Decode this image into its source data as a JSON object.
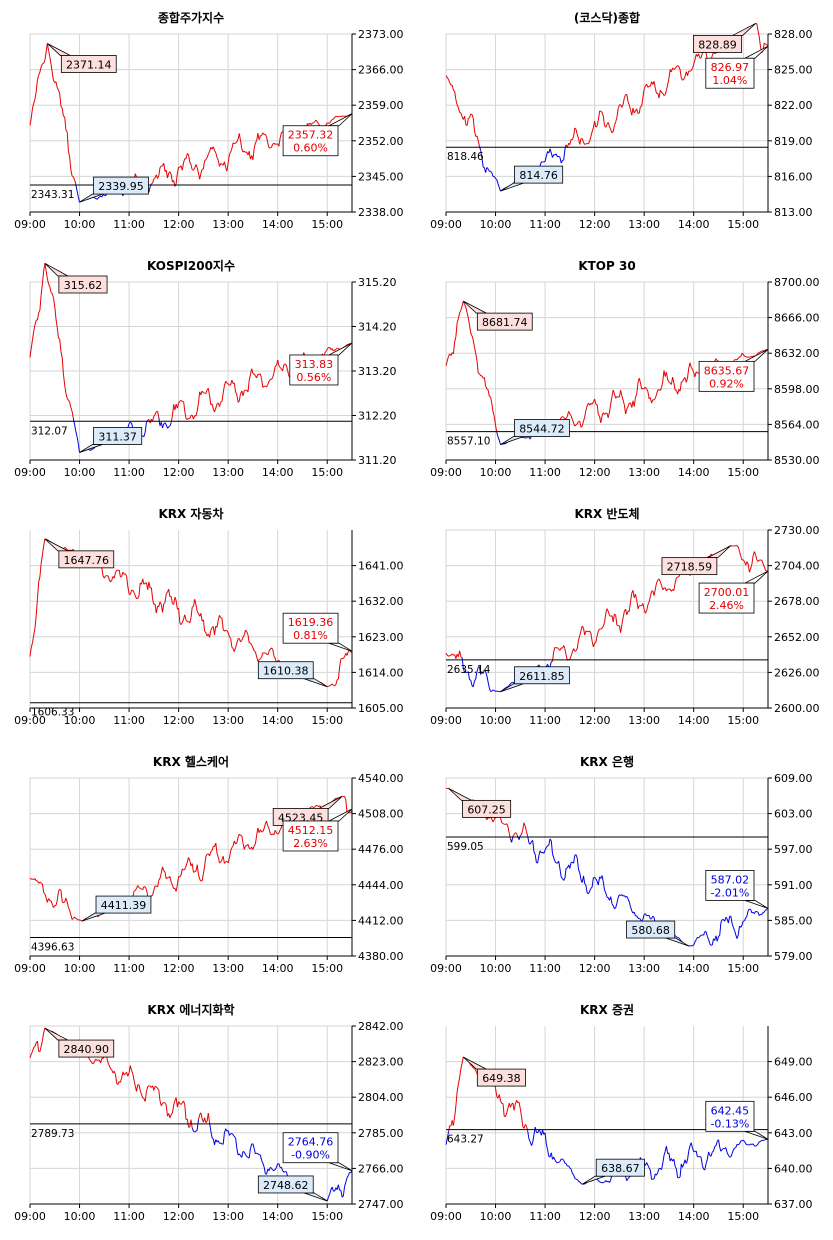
{
  "chart_data": [
    {
      "type": "line",
      "title": "종합주가지수",
      "x_ticks": [
        "09:00",
        "10:00",
        "11:00",
        "12:00",
        "13:00",
        "14:00",
        "15:00"
      ],
      "y_ticks": [
        "2373.00",
        "2366.00",
        "2359.00",
        "2352.00",
        "2345.00",
        "2338.00"
      ],
      "ylim": [
        2338,
        2373
      ],
      "base": 2343.31,
      "base_label": "2343.31",
      "start": 2355,
      "close": 2357.32,
      "high": {
        "t": 0.35,
        "v": 2371.14,
        "label": "2371.14"
      },
      "low": {
        "t": 1.0,
        "v": 2339.95,
        "label": "2339.95"
      },
      "current": {
        "value": "2357.32",
        "change": "0.60%"
      },
      "up_color": "#e60000",
      "down_color": "#0000e0"
    },
    {
      "type": "line",
      "title": "(코스닥)종합",
      "x_ticks": [
        "09:00",
        "10:00",
        "11:00",
        "12:00",
        "13:00",
        "14:00",
        "15:00"
      ],
      "y_ticks": [
        "828.00",
        "825.00",
        "822.00",
        "819.00",
        "816.00",
        "813.00"
      ],
      "ylim": [
        813,
        828
      ],
      "base": 818.46,
      "base_label": "818.46",
      "start": 824.5,
      "close": 826.97,
      "high": {
        "t": 6.25,
        "v": 828.89,
        "label": "828.89"
      },
      "low": {
        "t": 1.1,
        "v": 814.76,
        "label": "814.76"
      },
      "current": {
        "value": "826.97",
        "change": "1.04%"
      },
      "up_color": "#e60000",
      "down_color": "#0000e0"
    },
    {
      "type": "line",
      "title": "KOSPI200지수",
      "x_ticks": [
        "09:00",
        "10:00",
        "11:00",
        "12:00",
        "13:00",
        "14:00",
        "15:00"
      ],
      "y_ticks": [
        "315.20",
        "314.20",
        "313.20",
        "312.20",
        "311.20"
      ],
      "ylim": [
        311.2,
        315.2
      ],
      "base": 312.07,
      "base_label": "312.07",
      "start": 313.5,
      "close": 313.83,
      "high": {
        "t": 0.3,
        "v": 315.62,
        "label": "315.62"
      },
      "low": {
        "t": 1.0,
        "v": 311.37,
        "label": "311.37"
      },
      "current": {
        "value": "313.83",
        "change": "0.56%"
      },
      "up_color": "#e60000",
      "down_color": "#0000e0"
    },
    {
      "type": "line",
      "title": "KTOP 30",
      "x_ticks": [
        "09:00",
        "10:00",
        "11:00",
        "12:00",
        "13:00",
        "14:00",
        "15:00"
      ],
      "y_ticks": [
        "8700.00",
        "8666.00",
        "8632.00",
        "8598.00",
        "8564.00",
        "8530.00"
      ],
      "ylim": [
        8530,
        8700
      ],
      "base": 8557.1,
      "base_label": "8557.10",
      "start": 8620,
      "close": 8635.67,
      "high": {
        "t": 0.35,
        "v": 8681.74,
        "label": "8681.74"
      },
      "low": {
        "t": 1.1,
        "v": 8544.72,
        "label": "8544.72"
      },
      "current": {
        "value": "8635.67",
        "change": "0.92%"
      },
      "up_color": "#e60000",
      "down_color": "#0000e0"
    },
    {
      "type": "line",
      "title": "KRX 자동차",
      "x_ticks": [
        "09:00",
        "10:00",
        "11:00",
        "12:00",
        "13:00",
        "14:00",
        "15:00"
      ],
      "y_ticks": [
        "1641.00",
        "1632.00",
        "1623.00",
        "1614.00",
        "1605.00"
      ],
      "ylim": [
        1605,
        1650
      ],
      "base": 1606.33,
      "base_label": "1606.33",
      "start": 1618,
      "close": 1619.36,
      "high": {
        "t": 0.3,
        "v": 1647.76,
        "label": "1647.76"
      },
      "low": {
        "t": 6.0,
        "v": 1610.38,
        "label": "1610.38"
      },
      "current": {
        "value": "1619.36",
        "change": "0.81%"
      },
      "up_color": "#e60000",
      "down_color": "#0000e0"
    },
    {
      "type": "line",
      "title": "KRX 반도체",
      "x_ticks": [
        "09:00",
        "10:00",
        "11:00",
        "12:00",
        "13:00",
        "14:00",
        "15:00"
      ],
      "y_ticks": [
        "2730.00",
        "2704.00",
        "2678.00",
        "2652.00",
        "2626.00",
        "2600.00"
      ],
      "ylim": [
        2600,
        2730
      ],
      "base": 2635.14,
      "base_label": "2635.14",
      "start": 2640,
      "close": 2700.01,
      "high": {
        "t": 5.75,
        "v": 2718.59,
        "label": "2718.59"
      },
      "low": {
        "t": 1.1,
        "v": 2611.85,
        "label": "2611.85"
      },
      "current": {
        "value": "2700.01",
        "change": "2.46%"
      },
      "up_color": "#e60000",
      "down_color": "#0000e0"
    },
    {
      "type": "line",
      "title": "KRX 헬스케어",
      "x_ticks": [
        "09:00",
        "10:00",
        "11:00",
        "12:00",
        "13:00",
        "14:00",
        "15:00"
      ],
      "y_ticks": [
        "4540.00",
        "4508.00",
        "4476.00",
        "4444.00",
        "4412.00",
        "4380.00"
      ],
      "ylim": [
        4380,
        4540
      ],
      "base": 4396.63,
      "base_label": "4396.63",
      "start": 4450,
      "close": 4512.15,
      "high": {
        "t": 6.3,
        "v": 4523.45,
        "label": "4523.45"
      },
      "low": {
        "t": 1.05,
        "v": 4411.39,
        "label": "4411.39"
      },
      "current": {
        "value": "4512.15",
        "change": "2.63%"
      },
      "up_color": "#e60000",
      "down_color": "#0000e0"
    },
    {
      "type": "line",
      "title": "KRX 은행",
      "x_ticks": [
        "09:00",
        "10:00",
        "11:00",
        "12:00",
        "13:00",
        "14:00",
        "15:00"
      ],
      "y_ticks": [
        "609.00",
        "603.00",
        "597.00",
        "591.00",
        "585.00",
        "579.00"
      ],
      "ylim": [
        579,
        609
      ],
      "base": 599.05,
      "base_label": "599.05",
      "start": 607.25,
      "close": 587.02,
      "high": {
        "t": 0.05,
        "v": 607.25,
        "label": "607.25"
      },
      "low": {
        "t": 4.9,
        "v": 580.68,
        "label": "580.68"
      },
      "current": {
        "value": "587.02",
        "change": "-2.01%"
      },
      "up_color": "#e60000",
      "down_color": "#0000e0"
    },
    {
      "type": "line",
      "title": "KRX 에너지화학",
      "x_ticks": [
        "09:00",
        "10:00",
        "11:00",
        "12:00",
        "13:00",
        "14:00",
        "15:00"
      ],
      "y_ticks": [
        "2842.00",
        "2823.00",
        "2804.00",
        "2785.00",
        "2766.00",
        "2747.00"
      ],
      "ylim": [
        2747,
        2842
      ],
      "base": 2789.73,
      "base_label": "2789.73",
      "start": 2825,
      "close": 2764.76,
      "high": {
        "t": 0.3,
        "v": 2840.9,
        "label": "2840.90"
      },
      "low": {
        "t": 6.0,
        "v": 2748.62,
        "label": "2748.62"
      },
      "current": {
        "value": "2764.76",
        "change": "-0.90%"
      },
      "up_color": "#e60000",
      "down_color": "#0000e0"
    },
    {
      "type": "line",
      "title": "KRX 증권",
      "x_ticks": [
        "09:00",
        "10:00",
        "11:00",
        "12:00",
        "13:00",
        "14:00",
        "15:00"
      ],
      "y_ticks": [
        "649.00",
        "646.00",
        "643.00",
        "640.00",
        "637.00"
      ],
      "ylim": [
        637,
        652
      ],
      "base": 643.27,
      "base_label": "643.27",
      "start": 642,
      "close": 642.45,
      "high": {
        "t": 0.35,
        "v": 649.38,
        "label": "649.38"
      },
      "low": {
        "t": 2.75,
        "v": 638.67,
        "label": "638.67"
      },
      "current": {
        "value": "642.45",
        "change": "-0.13%"
      },
      "up_color": "#e60000",
      "down_color": "#0000e0"
    }
  ]
}
